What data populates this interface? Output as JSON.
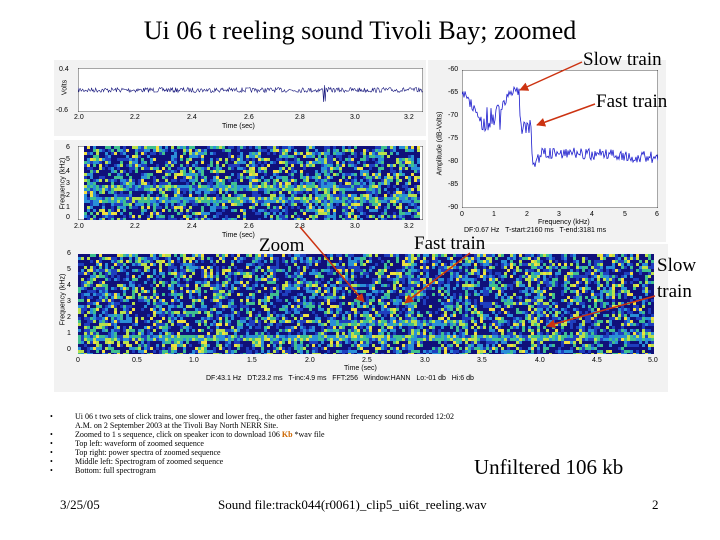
{
  "slide": {
    "title": "Ui 06 t reeling sound Tivoli Bay; zoomed",
    "date": "3/25/05",
    "sound_file": "Sound file:track044(r0061)_clip5_ui6t_reeling.wav",
    "page_number": "2",
    "unfiltered_label": "Unfiltered 106 kb"
  },
  "callouts": {
    "slow_train_top": "Slow train",
    "fast_train_top": "Fast train",
    "zoom": "Zoom",
    "fast_train_mid": "Fast train",
    "slow_train_right_1": "Slow",
    "slow_train_right_2": "train"
  },
  "colors": {
    "arrow": "#cc3311",
    "power_line": "#1a1acc",
    "wave": "#12127a"
  },
  "bullets": [
    "Ui 06 t two sets of click trains, one slower and lower freq., the other faster and higher frequency sound recorded 12:02 A.M. on 2 September 2003 at the Tivoli Bay North NERR Site.",
    "Top left: waveform of zoomed sequence",
    "Top right: power spectra of zoomed sequence",
    "Middle left: Spectrogram of zoomed sequence",
    "Bottom: full spectrogram"
  ],
  "bullet_zoom": {
    "before": "Zoomed to 1 s sequence, click on speaker icon to download 106 ",
    "kb": "Kb",
    "after": " *wav file"
  },
  "waveform": {
    "ylabel": "Volts",
    "yticks": [
      "0.4",
      "-0.6"
    ],
    "xlabel": "Time (sec)",
    "xticks": [
      "2.0",
      "2.2",
      "2.4",
      "2.6",
      "2.8",
      "3.0",
      "3.2"
    ]
  },
  "spectrogram_zoom": {
    "ylabel": "Frequency (kHz)",
    "yticks": [
      "6",
      "5",
      "4",
      "3",
      "2",
      "1",
      "0"
    ],
    "xlabel": "Time (sec)",
    "xticks": [
      "2.0",
      "2.2",
      "2.4",
      "2.6",
      "2.8",
      "3.0",
      "3.2"
    ]
  },
  "power_spectrum": {
    "ylabel": "Amplitude (dB-Volts)",
    "yticks": [
      "-60",
      "-65",
      "-70",
      "-75",
      "-80",
      "-85",
      "-90"
    ],
    "xlabel": "Frequency (kHz)",
    "xticks": [
      "0",
      "1",
      "2",
      "3",
      "4",
      "5",
      "6"
    ],
    "params": "DF:0.67 Hz   T-start:2160 ms   T-end:3181 ms"
  },
  "spectrogram_full": {
    "ylabel": "Frequency (kHz)",
    "yticks": [
      "6",
      "5",
      "4",
      "3",
      "2",
      "1",
      "0"
    ],
    "xlabel": "Time (sec)",
    "xticks": [
      "0",
      "0.5",
      "1.0",
      "1.5",
      "2.0",
      "2.5",
      "3.0",
      "3.5",
      "4.0",
      "4.5",
      "5.0"
    ],
    "params": "DF:43.1 Hz   DT:23.2 ms   T-inc:4.9 ms   FFT:256   Window:HANN   Lo:-01 db   Hi:6 db"
  }
}
